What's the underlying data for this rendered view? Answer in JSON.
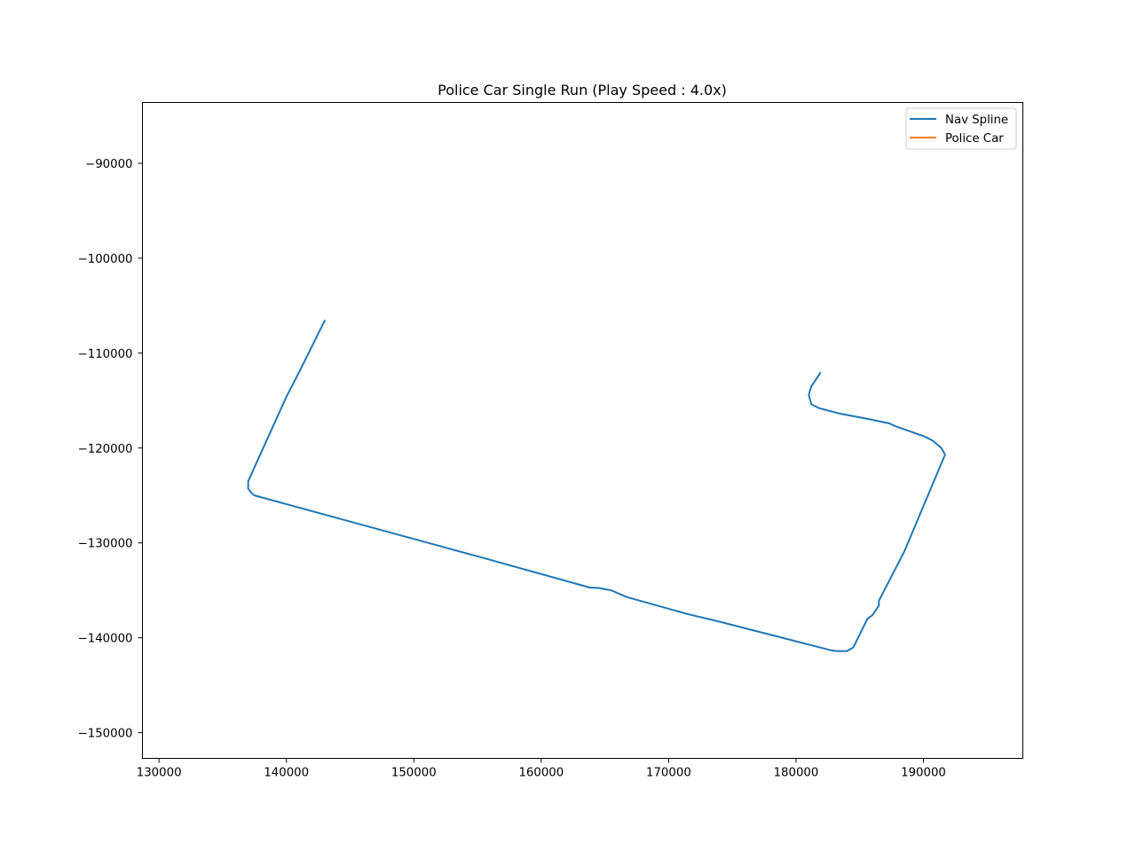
{
  "chart_data": {
    "type": "line",
    "title": "Police Car Single Run (Play Speed : 4.0x)",
    "xlabel": "",
    "ylabel": "",
    "xlim": [
      128700,
      197800
    ],
    "ylim": [
      -152700,
      -83600
    ],
    "x_ticks": [
      130000,
      140000,
      150000,
      160000,
      170000,
      180000,
      190000
    ],
    "y_ticks": [
      -90000,
      -100000,
      -110000,
      -120000,
      -130000,
      -140000,
      -150000
    ],
    "x_tick_labels": [
      "130000",
      "140000",
      "150000",
      "160000",
      "170000",
      "180000",
      "190000"
    ],
    "y_tick_labels": [
      "−90000",
      "−100000",
      "−110000",
      "−120000",
      "−130000",
      "−140000",
      "−150000"
    ],
    "grid": false,
    "legend_position": "top-right",
    "series": [
      {
        "name": "Nav Spline",
        "color": "#1f77b4",
        "x": [
          143000,
          141000,
          140000,
          137000,
          137000,
          137300,
          137500,
          152500,
          155500,
          163800,
          164500,
          165500,
          166700,
          171500,
          174000,
          182700,
          183200,
          184000,
          184500,
          185600,
          186000,
          186500,
          186500,
          188500,
          191600,
          191700,
          191400,
          190700,
          190100,
          187800,
          187300,
          185500,
          183500,
          181800,
          181200,
          181000,
          181200,
          181900
        ],
        "y": [
          -106600,
          -112000,
          -114600,
          -123500,
          -124300,
          -124800,
          -125000,
          -130500,
          -131600,
          -134700,
          -134750,
          -135000,
          -135700,
          -137500,
          -138300,
          -141300,
          -141400,
          -141400,
          -141000,
          -138000,
          -137600,
          -136600,
          -136100,
          -130900,
          -121000,
          -120700,
          -120000,
          -119200,
          -118800,
          -117700,
          -117400,
          -116900,
          -116400,
          -115800,
          -115400,
          -114400,
          -113500,
          -112100
        ]
      },
      {
        "name": "Police Car",
        "color": "#ff7f0e",
        "x": [],
        "y": []
      }
    ]
  }
}
